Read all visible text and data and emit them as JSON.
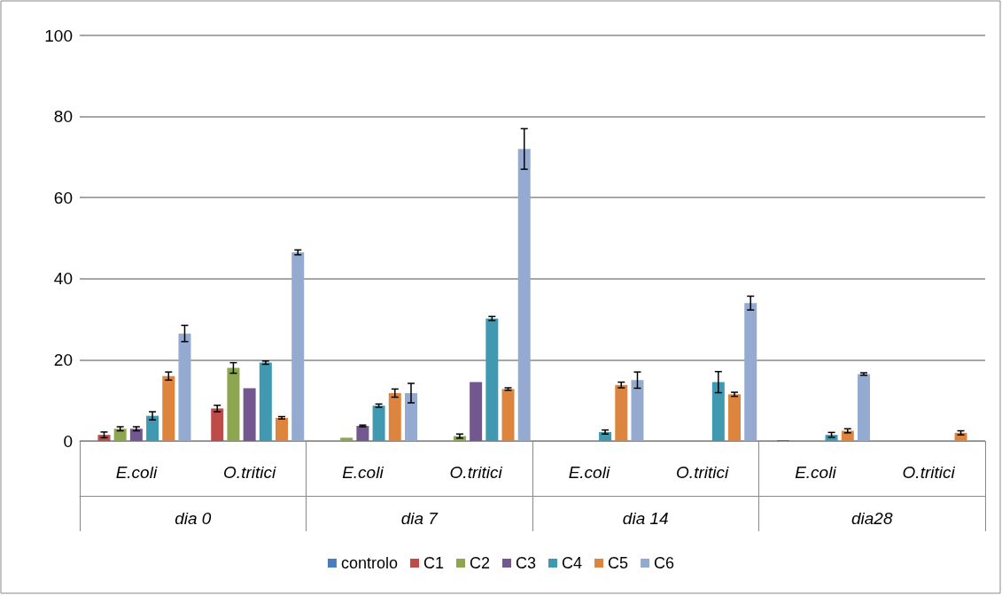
{
  "chart_data": {
    "type": "bar",
    "categories": [
      "E.coli",
      "O.tritici",
      "E.coli",
      "O.tritici",
      "E.coli",
      "O.tritici",
      "E.coli",
      "O.tritici"
    ],
    "annotations": [
      "dia 0",
      "dia 7",
      "dia 14",
      "dia28"
    ],
    "series": [
      {
        "name": "controlo",
        "color": "#4a7ebb",
        "values": [
          0,
          0,
          0,
          0,
          0,
          0,
          0,
          0
        ],
        "errors": [
          null,
          null,
          null,
          null,
          null,
          null,
          null,
          null
        ]
      },
      {
        "name": "C1",
        "color": "#be4b48",
        "values": [
          1.5,
          8,
          0,
          0,
          0,
          0,
          0.2,
          0
        ],
        "errors": [
          0.7,
          0.8,
          null,
          null,
          null,
          null,
          null,
          null
        ]
      },
      {
        "name": "C2",
        "color": "#8ea64f",
        "values": [
          3,
          18,
          0.8,
          1.2,
          0,
          0,
          0,
          0
        ],
        "errors": [
          0.5,
          1.3,
          null,
          0.5,
          null,
          null,
          null,
          null
        ]
      },
      {
        "name": "C3",
        "color": "#73588f",
        "values": [
          3,
          13,
          3.7,
          14.5,
          0,
          0,
          0,
          0
        ],
        "errors": [
          0.5,
          null,
          0.2,
          null,
          null,
          null,
          null,
          null
        ]
      },
      {
        "name": "C4",
        "color": "#4199b1",
        "values": [
          6.2,
          19.3,
          8.7,
          30.2,
          2.2,
          14.5,
          1.5,
          0
        ],
        "errors": [
          1,
          0.4,
          0.4,
          0.5,
          0.5,
          2.6,
          0.6,
          null
        ]
      },
      {
        "name": "C5",
        "color": "#dd843f",
        "values": [
          16,
          5.7,
          11.8,
          12.8,
          13.8,
          11.5,
          2.5,
          2
        ],
        "errors": [
          1,
          0.3,
          1,
          0.3,
          0.7,
          0.5,
          0.5,
          0.5
        ]
      },
      {
        "name": "C6",
        "color": "#95aad1",
        "values": [
          26.5,
          46.5,
          11.8,
          72,
          15,
          34,
          16.5,
          0
        ],
        "errors": [
          2,
          0.6,
          2.4,
          5,
          2,
          1.7,
          0.3,
          null
        ]
      }
    ],
    "ylim": [
      0,
      100
    ],
    "yticks": [
      0,
      20,
      40,
      60,
      80,
      100
    ],
    "grid": "y",
    "legend": "bottom"
  }
}
